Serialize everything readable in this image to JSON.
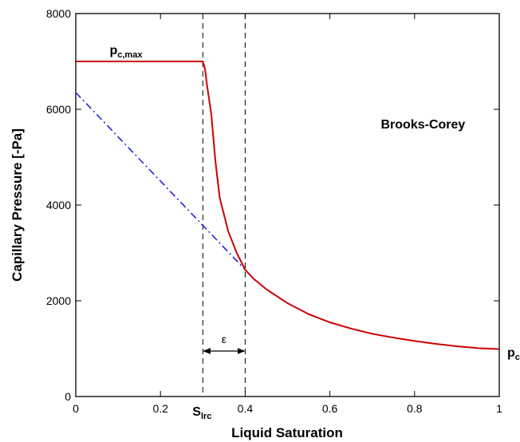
{
  "chart_data": {
    "type": "line",
    "xlabel": "Liquid Saturation",
    "ylabel": "Capillary Pressure [-Pa]",
    "xlim": [
      0,
      1
    ],
    "ylim": [
      0,
      8000
    ],
    "x_ticks": [
      {
        "value": 0,
        "label": "0"
      },
      {
        "value": 0.2,
        "label": "0.2"
      },
      {
        "value": 0.4,
        "label": "0.4"
      },
      {
        "value": 0.6,
        "label": "0.6"
      },
      {
        "value": 0.8,
        "label": "0.8"
      },
      {
        "value": 1,
        "label": "1"
      }
    ],
    "y_ticks": [
      {
        "value": 0,
        "label": "0"
      },
      {
        "value": 2000,
        "label": "2000"
      },
      {
        "value": 4000,
        "label": "4000"
      },
      {
        "value": 6000,
        "label": "6000"
      },
      {
        "value": 8000,
        "label": "8000"
      }
    ],
    "grid": false,
    "legend": "none",
    "series": [
      {
        "style": "solid",
        "color": "#cc0000",
        "x": [
          0,
          0.3,
          0.305,
          0.31,
          0.32,
          0.33,
          0.34,
          0.36,
          0.38,
          0.4,
          0.42,
          0.45,
          0.5,
          0.55,
          0.6,
          0.65,
          0.7,
          0.75,
          0.8,
          0.85,
          0.9,
          0.95,
          1.0
        ],
        "y": [
          7000,
          7000,
          6850,
          6500,
          5900,
          4900,
          4150,
          3450,
          3000,
          2650,
          2460,
          2240,
          1950,
          1720,
          1550,
          1420,
          1310,
          1230,
          1160,
          1100,
          1050,
          1010,
          990
        ]
      },
      {
        "style": "dash-dot",
        "color": "#2323e0",
        "x": [
          0,
          0.4
        ],
        "y": [
          6350,
          2650
        ]
      }
    ],
    "vlines": [
      0.3,
      0.4
    ],
    "annotations": {
      "pc_max": {
        "base": "p",
        "sub": "c,max",
        "x": 0.08,
        "y": 7000
      },
      "s_lrc": {
        "base": "S",
        "sub": "lrc",
        "x": 0.3
      },
      "epsilon": {
        "text": "ε",
        "x1": 0.3,
        "x2": 0.4,
        "y": 1000
      },
      "model": {
        "text": "Brooks-Corey",
        "x": 0.82,
        "y": 5600
      },
      "pc_right": {
        "base": "p",
        "sub": "c",
        "x": 1.0,
        "y": 1000
      }
    }
  }
}
